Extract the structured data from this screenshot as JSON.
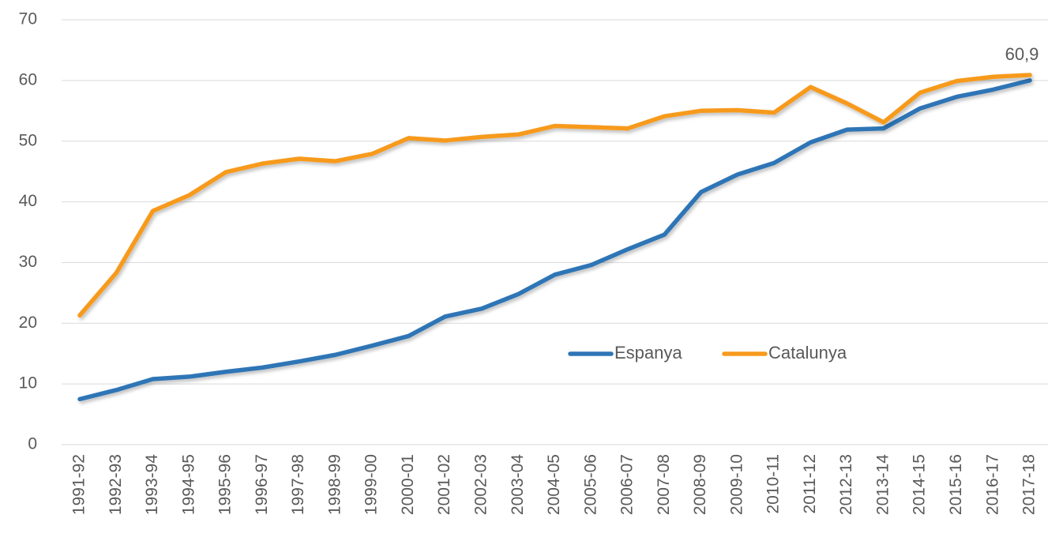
{
  "chart_data": {
    "type": "line",
    "categories": [
      "1991-92",
      "1992-93",
      "1993-94",
      "1994-95",
      "1995-96",
      "1996-97",
      "1997-98",
      "1998-99",
      "1999-00",
      "2000-01",
      "2001-02",
      "2002-03",
      "2003-04",
      "2004-05",
      "2005-06",
      "2006-07",
      "2007-08",
      "2008-09",
      "2009-10",
      "2010-11",
      "2011-12",
      "2012-13",
      "2013-14",
      "2014-15",
      "2015-16",
      "2016-17",
      "2017-18"
    ],
    "series": [
      {
        "name": "Espanya",
        "color": "#2e75b6",
        "values": [
          7.5,
          9.0,
          10.8,
          11.2,
          12.0,
          12.7,
          13.7,
          14.8,
          16.3,
          17.9,
          21.1,
          22.4,
          24.8,
          28.0,
          29.6,
          32.2,
          34.6,
          41.6,
          44.5,
          46.4,
          49.8,
          51.9,
          52.1,
          55.4,
          57.3,
          58.5,
          60.0
        ]
      },
      {
        "name": "Catalunya",
        "color": "#f79a1e",
        "values": [
          21.3,
          28.3,
          38.5,
          41.1,
          44.9,
          46.3,
          47.1,
          46.7,
          47.9,
          50.5,
          50.1,
          50.7,
          51.1,
          52.5,
          52.3,
          52.1,
          54.1,
          55.0,
          55.1,
          54.7,
          58.9,
          56.2,
          53.1,
          58.0,
          59.9,
          60.6,
          60.9
        ],
        "value_labels": [
          null,
          null,
          null,
          null,
          null,
          null,
          null,
          null,
          null,
          null,
          null,
          null,
          null,
          null,
          null,
          null,
          null,
          null,
          null,
          null,
          null,
          null,
          null,
          null,
          null,
          null,
          "60,9"
        ]
      }
    ],
    "ylim": [
      0,
      70
    ],
    "yticks": [
      0,
      10,
      20,
      30,
      40,
      50,
      60,
      70
    ],
    "grid": true
  }
}
